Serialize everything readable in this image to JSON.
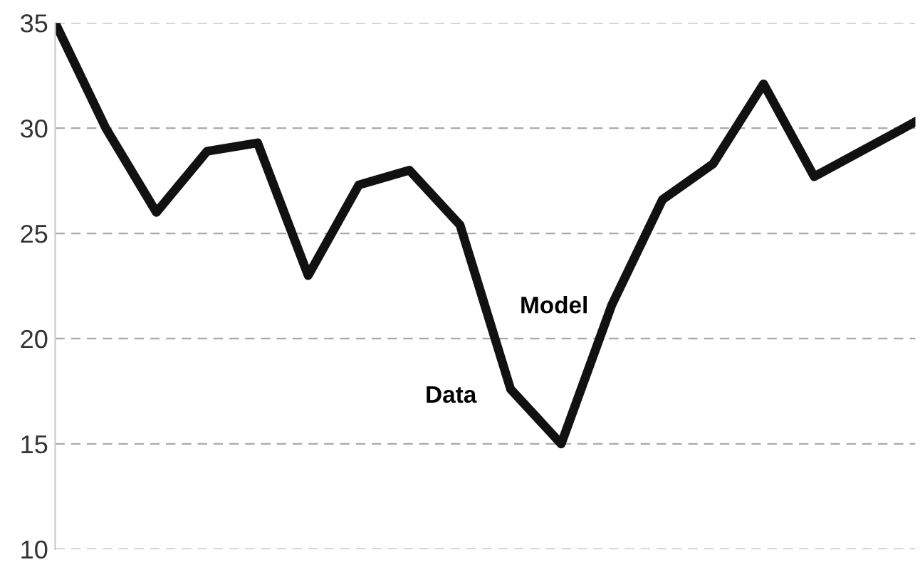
{
  "chart_data": {
    "type": "line",
    "categories": [
      null,
      null,
      null,
      null,
      null,
      null,
      null,
      null,
      null,
      null,
      null,
      null,
      null,
      null,
      null,
      null,
      null,
      null
    ],
    "series": [
      {
        "color": "#111111",
        "values": [
          35,
          30,
          26,
          28.9,
          29.3,
          23,
          27.3,
          28,
          25.4,
          17.6,
          15,
          21.6,
          26.6,
          28.3,
          32.1,
          27.7,
          29,
          30.3
        ]
      }
    ],
    "ylim": [
      10,
      35
    ],
    "yticks": [
      10,
      15,
      20,
      25,
      30,
      35
    ],
    "grid": "y",
    "marker": "none",
    "line_style": "solid",
    "annotations": [
      "Model",
      "Data"
    ]
  }
}
